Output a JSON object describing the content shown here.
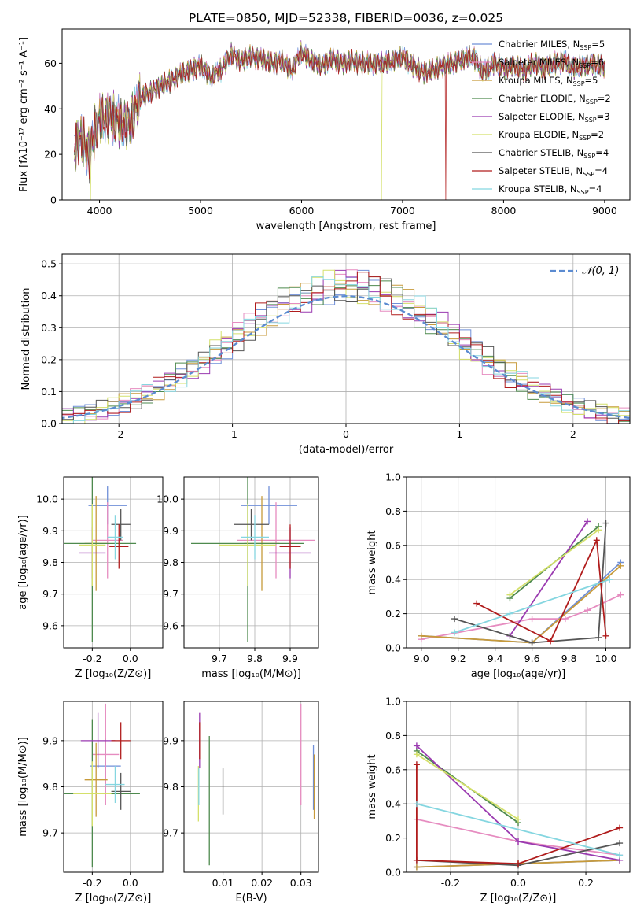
{
  "figure_title": "PLATE=0850, MJD=52338, FIBERID=0036, z=0.025",
  "models": [
    {
      "name": "Chabrier MILES, N",
      "sub": "SSP",
      "suffix": "=5",
      "color": "#6f8fd8"
    },
    {
      "name": "Salpeter MILES, N",
      "sub": "SSP",
      "suffix": "=6",
      "color": "#e68cc0"
    },
    {
      "name": "Kroupa MILES, N",
      "sub": "SSP",
      "suffix": "=5",
      "color": "#c79a3a"
    },
    {
      "name": "Chabrier ELODIE, N",
      "sub": "SSP",
      "suffix": "=2",
      "color": "#4e8a4e"
    },
    {
      "name": "Salpeter ELODIE, N",
      "sub": "SSP",
      "suffix": "=3",
      "color": "#9a3ab0"
    },
    {
      "name": "Kroupa ELODIE, N",
      "sub": "SSP",
      "suffix": "=2",
      "color": "#d4e06a"
    },
    {
      "name": "Chabrier STELIB, N",
      "sub": "SSP",
      "suffix": "=4",
      "color": "#555555"
    },
    {
      "name": "Salpeter STELIB, N",
      "sub": "SSP",
      "suffix": "=4",
      "color": "#b01c1c"
    },
    {
      "name": "Kroupa STELIB, N",
      "sub": "SSP",
      "suffix": "=4",
      "color": "#85d6e0"
    }
  ],
  "chart_data": [
    {
      "id": "spectrum",
      "type": "line",
      "xlabel": "wavelength [Angstrom, rest frame]",
      "ylabel": "Flux [fλ10⁻¹⁷ erg cm⁻² s⁻¹ A⁻¹]",
      "xlim": [
        3630,
        9250
      ],
      "ylim": [
        0,
        75
      ],
      "xticks": [
        4000,
        5000,
        6000,
        7000,
        8000,
        9000
      ],
      "yticks": [
        0,
        20,
        40,
        60
      ],
      "x": [
        3750,
        3800,
        3850,
        3900,
        3950,
        4000,
        4100,
        4200,
        4300,
        4400,
        4500,
        4600,
        4700,
        4800,
        4900,
        5000,
        5100,
        5200,
        5300,
        5400,
        5500,
        5600,
        5700,
        5800,
        5900,
        6000,
        6100,
        6200,
        6300,
        6400,
        6500,
        6600,
        6700,
        6800,
        6900,
        7000,
        7100,
        7200,
        7300,
        7400,
        7500,
        7600,
        7700,
        7800,
        7900,
        8000,
        8100,
        8200,
        8300,
        8400,
        8500,
        8600,
        8700,
        8800,
        8900,
        9000
      ],
      "y": [
        22,
        28,
        24,
        20,
        30,
        35,
        37,
        34,
        33,
        45,
        47,
        50,
        52,
        55,
        57,
        59,
        54,
        57,
        64,
        61,
        63,
        62,
        60,
        61,
        57,
        65,
        61,
        59,
        62,
        60,
        61,
        60,
        60,
        60,
        61,
        63,
        59,
        56,
        57,
        59,
        60,
        62,
        63,
        56,
        60,
        58,
        59,
        57,
        60,
        58,
        60,
        61,
        58,
        59,
        60,
        58
      ],
      "dropouts": [
        {
          "x": 3910,
          "model": 5
        },
        {
          "x": 6790,
          "model": 5
        },
        {
          "x": 7430,
          "model": 7
        }
      ]
    },
    {
      "id": "residual-histogram",
      "type": "line",
      "xlabel": "(data-model)/error",
      "ylabel": "Normed distribution",
      "xlim": [
        -2.5,
        2.5
      ],
      "ylim": [
        0,
        0.53
      ],
      "xticks": [
        -2,
        -1,
        0,
        1,
        2
      ],
      "yticks": [
        0.0,
        0.1,
        0.2,
        0.3,
        0.4,
        0.5
      ],
      "bin_width": 0.1,
      "reference_curve": "N(0,1)",
      "reference_label_pre": "𝒩(0, 1)",
      "reference_color": "#5b8bd1"
    },
    {
      "id": "age-vs-Z",
      "type": "scatter",
      "xlabel": "Z [log₁₀(Z/Z⊙)]",
      "ylabel": "age  [log₁₀(age/yr)]",
      "xlim": [
        -0.35,
        0.17
      ],
      "ylim": [
        9.53,
        10.07
      ],
      "xticks": [
        -0.2,
        0.0
      ],
      "yticks": [
        9.6,
        9.7,
        9.8,
        9.9,
        10.0
      ],
      "points": [
        {
          "model": 0,
          "x": -0.12,
          "y": 9.98,
          "xerr": 0.1,
          "yerr": 0.06
        },
        {
          "model": 1,
          "x": -0.12,
          "y": 9.87,
          "xerr": 0.08,
          "yerr": 0.12
        },
        {
          "model": 2,
          "x": -0.18,
          "y": 9.86,
          "xerr": 0.06,
          "yerr": 0.15
        },
        {
          "model": 3,
          "x": -0.2,
          "y": 9.86,
          "xerr": 0.23,
          "yerr": 0.31
        },
        {
          "model": 4,
          "x": -0.2,
          "y": 9.83,
          "xerr": 0.07,
          "yerr": 0.08
        },
        {
          "model": 5,
          "x": -0.2,
          "y": 9.855,
          "xerr": 0.07,
          "yerr": 0.13
        },
        {
          "model": 6,
          "x": -0.05,
          "y": 9.92,
          "xerr": 0.05,
          "yerr": 0.05
        },
        {
          "model": 7,
          "x": -0.06,
          "y": 9.85,
          "xerr": 0.05,
          "yerr": 0.07
        },
        {
          "model": 8,
          "x": -0.08,
          "y": 9.88,
          "xerr": 0.04,
          "yerr": 0.07
        }
      ]
    },
    {
      "id": "age-vs-mass",
      "type": "scatter",
      "xlabel": "mass [log₁₀(M/M⊙)]",
      "ylabel": "",
      "xlim": [
        9.6,
        9.98
      ],
      "ylim": [
        9.53,
        10.07
      ],
      "xticks": [
        9.7,
        9.8,
        9.9
      ],
      "yticks": [
        9.6,
        9.7,
        9.8,
        9.9,
        10.0
      ],
      "points": [
        {
          "model": 0,
          "x": 9.84,
          "y": 9.98,
          "xerr": 0.08,
          "yerr": 0.06
        },
        {
          "model": 1,
          "x": 9.86,
          "y": 9.87,
          "xerr": 0.11,
          "yerr": 0.12
        },
        {
          "model": 2,
          "x": 9.82,
          "y": 9.86,
          "xerr": 0.05,
          "yerr": 0.15
        },
        {
          "model": 3,
          "x": 9.78,
          "y": 9.86,
          "xerr": 0.16,
          "yerr": 0.31
        },
        {
          "model": 4,
          "x": 9.9,
          "y": 9.83,
          "xerr": 0.06,
          "yerr": 0.08
        },
        {
          "model": 5,
          "x": 9.78,
          "y": 9.855,
          "xerr": 0.08,
          "yerr": 0.13
        },
        {
          "model": 6,
          "x": 9.79,
          "y": 9.92,
          "xerr": 0.05,
          "yerr": 0.05
        },
        {
          "model": 7,
          "x": 9.9,
          "y": 9.85,
          "xerr": 0.03,
          "yerr": 0.07
        },
        {
          "model": 8,
          "x": 9.8,
          "y": 9.88,
          "xerr": 0.04,
          "yerr": 0.07
        }
      ]
    },
    {
      "id": "massweight-vs-age",
      "type": "line",
      "xlabel": "age  [log₁₀(age/yr)]",
      "ylabel": "mass weight",
      "xlim": [
        8.92,
        10.13
      ],
      "ylim": [
        0,
        1
      ],
      "xticks": [
        9.0,
        9.2,
        9.4,
        9.6,
        9.8,
        10.0
      ],
      "yticks": [
        0.0,
        0.2,
        0.4,
        0.6,
        0.8,
        1.0
      ],
      "series": [
        {
          "model": 0,
          "x": [
            9.0,
            9.6,
            10.08
          ],
          "y": [
            0.07,
            0.03,
            0.5
          ]
        },
        {
          "model": 1,
          "x": [
            9.0,
            9.6,
            9.78,
            9.9,
            10.08
          ],
          "y": [
            0.05,
            0.17,
            0.17,
            0.22,
            0.31
          ]
        },
        {
          "model": 2,
          "x": [
            9.0,
            9.6,
            10.08
          ],
          "y": [
            0.07,
            0.03,
            0.48
          ]
        },
        {
          "model": 3,
          "x": [
            9.48,
            9.96
          ],
          "y": [
            0.29,
            0.71
          ]
        },
        {
          "model": 4,
          "x": [
            9.48,
            9.9
          ],
          "y": [
            0.07,
            0.74
          ]
        },
        {
          "model": 5,
          "x": [
            9.48,
            9.96
          ],
          "y": [
            0.31,
            0.69
          ]
        },
        {
          "model": 6,
          "x": [
            9.18,
            9.6,
            9.96,
            10.0
          ],
          "y": [
            0.17,
            0.03,
            0.06,
            0.73
          ]
        },
        {
          "model": 7,
          "x": [
            9.3,
            9.7,
            9.95,
            10.0
          ],
          "y": [
            0.26,
            0.04,
            0.63,
            0.07
          ]
        },
        {
          "model": 8,
          "x": [
            9.18,
            9.48,
            10.02
          ],
          "y": [
            0.09,
            0.2,
            0.4
          ]
        }
      ]
    },
    {
      "id": "mass-vs-Z",
      "type": "scatter",
      "xlabel": "Z [log₁₀(Z/Z⊙)]",
      "ylabel": "mass [log₁₀(M/M⊙)]",
      "xlim": [
        -0.35,
        0.17
      ],
      "ylim": [
        9.615,
        9.985
      ],
      "xticks": [
        -0.2,
        0.0
      ],
      "yticks": [
        9.7,
        9.8,
        9.9
      ],
      "points": [
        {
          "model": 0,
          "x": -0.13,
          "y": 9.845,
          "xerr": 0.08,
          "yerr": 0.06
        },
        {
          "model": 1,
          "x": -0.13,
          "y": 9.87,
          "xerr": 0.07,
          "yerr": 0.11
        },
        {
          "model": 2,
          "x": -0.18,
          "y": 9.815,
          "xerr": 0.06,
          "yerr": 0.08
        },
        {
          "model": 3,
          "x": -0.2,
          "y": 9.785,
          "xerr": 0.25,
          "yerr": 0.16
        },
        {
          "model": 4,
          "x": -0.17,
          "y": 9.9,
          "xerr": 0.09,
          "yerr": 0.06
        },
        {
          "model": 5,
          "x": -0.2,
          "y": 9.785,
          "xerr": 0.1,
          "yerr": 0.07
        },
        {
          "model": 6,
          "x": -0.05,
          "y": 9.79,
          "xerr": 0.05,
          "yerr": 0.04
        },
        {
          "model": 7,
          "x": -0.05,
          "y": 9.9,
          "xerr": 0.05,
          "yerr": 0.04
        },
        {
          "model": 8,
          "x": -0.08,
          "y": 9.805,
          "xerr": 0.05,
          "yerr": 0.04
        }
      ]
    },
    {
      "id": "mass-vs-EBV",
      "type": "scatter",
      "xlabel": "E(B-V)",
      "ylabel": "",
      "xlim": [
        0.0,
        0.0345
      ],
      "ylim": [
        9.615,
        9.985
      ],
      "xticks": [
        0.01,
        0.02,
        0.03
      ],
      "yticks": [
        9.7,
        9.8,
        9.9
      ],
      "points": [
        {
          "model": 0,
          "x": 0.0332,
          "y": 9.82,
          "xerr": 0,
          "yerr": 0.07
        },
        {
          "model": 1,
          "x": 0.03,
          "y": 9.87,
          "xerr": 0,
          "yerr": 0.11
        },
        {
          "model": 2,
          "x": 0.0334,
          "y": 9.8,
          "xerr": 0,
          "yerr": 0.07
        },
        {
          "model": 3,
          "x": 0.0065,
          "y": 9.77,
          "xerr": 0,
          "yerr": 0.14
        },
        {
          "model": 4,
          "x": 0.004,
          "y": 9.9,
          "xerr": 0,
          "yerr": 0.06
        },
        {
          "model": 5,
          "x": 0.0037,
          "y": 9.785,
          "xerr": 0,
          "yerr": 0.06
        },
        {
          "model": 6,
          "x": 0.01,
          "y": 9.79,
          "xerr": 0,
          "yerr": 0.05
        },
        {
          "model": 7,
          "x": 0.004,
          "y": 9.9,
          "xerr": 0,
          "yerr": 0.04
        },
        {
          "model": 8,
          "x": 0.0038,
          "y": 9.8,
          "xerr": 0,
          "yerr": 0.04
        }
      ]
    },
    {
      "id": "massweight-vs-Z",
      "type": "line",
      "xlabel": "Z [log₁₀(Z/Z⊙)]",
      "ylabel": "mass weight",
      "xlim": [
        -0.33,
        0.33
      ],
      "ylim": [
        0,
        1
      ],
      "xticks": [
        -0.2,
        0.0,
        0.2
      ],
      "yticks": [
        0.0,
        0.2,
        0.4,
        0.6,
        0.8,
        1.0
      ],
      "series": [
        {
          "model": 0,
          "x": [
            -0.3,
            0.0,
            0.3
          ],
          "y": [
            0.03,
            0.05,
            0.07
          ]
        },
        {
          "model": 1,
          "x": [
            -0.3,
            0.0,
            0.3
          ],
          "y": [
            0.31,
            0.18,
            0.1
          ]
        },
        {
          "model": 2,
          "x": [
            -0.3,
            0.0,
            0.3
          ],
          "y": [
            0.03,
            0.05,
            0.07
          ]
        },
        {
          "model": 3,
          "x": [
            -0.3,
            0.0
          ],
          "y": [
            0.71,
            0.29
          ]
        },
        {
          "model": 4,
          "x": [
            -0.3,
            0.0,
            0.3
          ],
          "y": [
            0.74,
            0.18,
            0.07
          ]
        },
        {
          "model": 5,
          "x": [
            -0.3,
            0.0
          ],
          "y": [
            0.69,
            0.31
          ]
        },
        {
          "model": 6,
          "x": [
            -0.3,
            0.0,
            0.3
          ],
          "y": [
            0.07,
            0.04,
            0.17
          ]
        },
        {
          "model": 7,
          "x": [
            -0.3,
            -0.3,
            0.0,
            0.3
          ],
          "y": [
            0.63,
            0.07,
            0.05,
            0.26
          ]
        },
        {
          "model": 8,
          "x": [
            -0.3,
            0.3
          ],
          "y": [
            0.4,
            0.1
          ]
        }
      ]
    }
  ]
}
